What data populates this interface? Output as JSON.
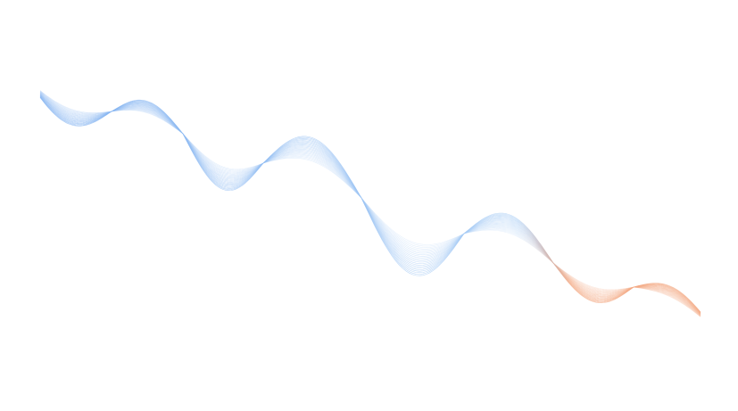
{
  "background_color": "#ffffff",
  "wave": {
    "line_count": 22,
    "colors": {
      "start": "#7fb0f0",
      "middle": "#a9cdf5",
      "end": "#f3a882"
    }
  }
}
